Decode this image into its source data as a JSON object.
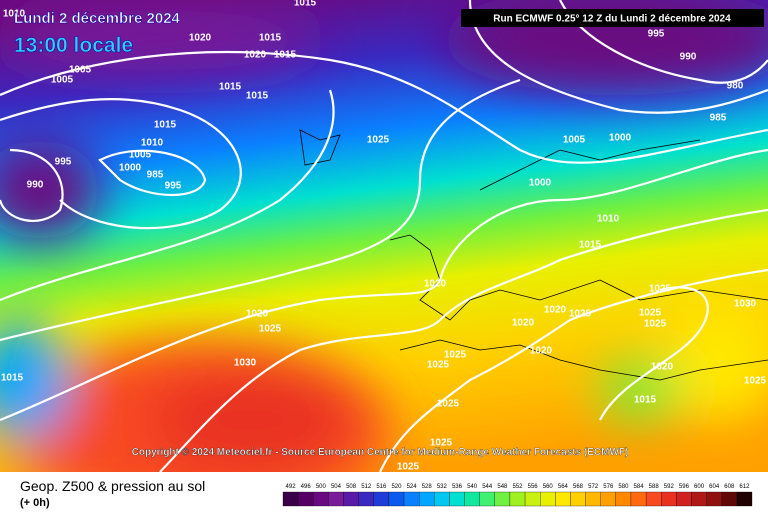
{
  "header": {
    "date": "Lundi 2 décembre 2024",
    "time": "13:00 locale",
    "run": "Run ECMWF 0.25° 12 Z du Lundi 2 décembre 2024"
  },
  "copyright": "Copyright © 2024 Meteociel.fr - Source European Centre for Medium-Range Weather Forecasts (ECMWF)",
  "footer": {
    "title": "Geop. Z500 & pression au sol",
    "subtitle": "(+ 0h)"
  },
  "isobar_labels": [
    "1010",
    "1015",
    "1020",
    "1015",
    "1020",
    "1015",
    "1005",
    "1005",
    "1015",
    "1015",
    "1015",
    "1025",
    "1010",
    "1005",
    "1000",
    "985",
    "995",
    "995",
    "990",
    "995",
    "990",
    "980",
    "985",
    "1005",
    "1000",
    "1000",
    "1010",
    "1015",
    "1020",
    "1020",
    "1025",
    "1020",
    "1020",
    "1025",
    "1025",
    "1025",
    "1025",
    "1030",
    "1020",
    "1025",
    "1025",
    "1030",
    "1015",
    "1020",
    "1025",
    "1015",
    "1025",
    "1025",
    "1025"
  ],
  "colorbar": {
    "labels": [
      "492",
      "496",
      "500",
      "504",
      "508",
      "512",
      "516",
      "520",
      "524",
      "528",
      "532",
      "536",
      "540",
      "544",
      "548",
      "552",
      "556",
      "560",
      "564",
      "568",
      "572",
      "576",
      "580",
      "584",
      "588",
      "592",
      "596",
      "600",
      "604",
      "608",
      "612"
    ],
    "colors": [
      "#3a0048",
      "#560066",
      "#6a0a80",
      "#7a1c99",
      "#5a1aa8",
      "#3a28c0",
      "#1e3cd8",
      "#0a5af0",
      "#0a80ff",
      "#00a6ff",
      "#00c8f0",
      "#00e0d0",
      "#10e8a0",
      "#40f070",
      "#70f040",
      "#a0f020",
      "#c8f010",
      "#e8f000",
      "#ffe800",
      "#ffd000",
      "#ffb800",
      "#ffa000",
      "#ff8800",
      "#ff6a10",
      "#f84a20",
      "#e83020",
      "#d02020",
      "#b01818",
      "#901010",
      "#600808",
      "#200000"
    ]
  }
}
